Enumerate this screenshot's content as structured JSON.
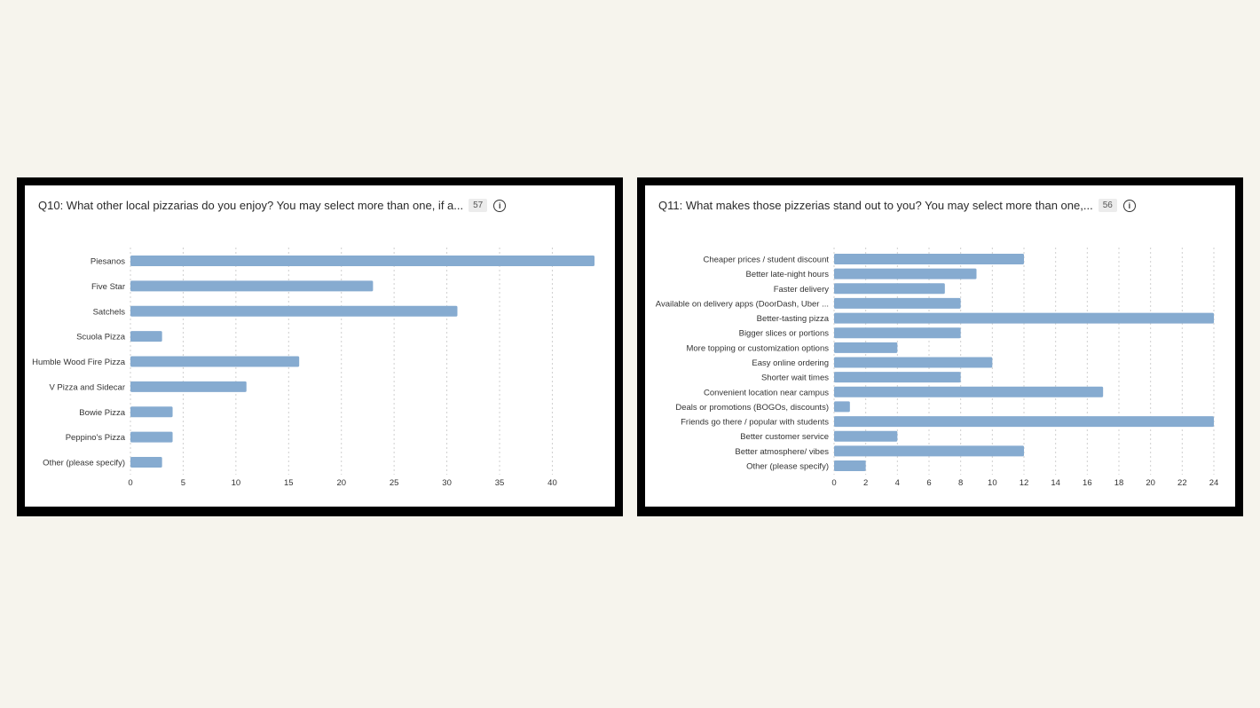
{
  "panels": [
    {
      "title": "Q10: What other local pizzarias do you enjoy? You may select more than one, if a...",
      "count": "57",
      "info_icon": "info-icon",
      "chart_data": {
        "type": "bar",
        "orientation": "horizontal",
        "categories": [
          "Piesanos",
          "Five Star",
          "Satchels",
          "Scuola Pizza",
          "Humble Wood Fire Pizza",
          "V Pizza and Sidecar",
          "Bowie Pizza",
          "Peppino's Pizza",
          "Other (please specify)"
        ],
        "values": [
          44,
          23,
          31,
          3,
          16,
          11,
          4,
          4,
          3
        ],
        "xticks": [
          "0",
          "5",
          "10",
          "15",
          "20",
          "25",
          "30",
          "35",
          "40"
        ],
        "xlim": [
          0,
          44
        ],
        "grid": true,
        "bar_color": "#86abd0"
      }
    },
    {
      "title": "Q11: What makes those pizzerias stand out to you? You may select more than one,...",
      "count": "56",
      "info_icon": "info-icon",
      "chart_data": {
        "type": "bar",
        "orientation": "horizontal",
        "categories": [
          "Cheaper prices / student discount",
          "Better late-night hours",
          "Faster delivery",
          "Available on delivery apps (DoorDash, Uber ...",
          "Better-tasting pizza",
          "Bigger slices or portions",
          "More topping or customization options",
          "Easy online ordering",
          "Shorter wait times",
          "Convenient location near campus",
          "Deals or promotions (BOGOs, discounts)",
          "Friends go there / popular with students",
          "Better customer service",
          "Better atmosphere/ vibes",
          "Other (please specify)"
        ],
        "values": [
          12,
          9,
          7,
          8,
          24,
          8,
          4,
          10,
          8,
          17,
          1,
          24,
          4,
          12,
          2
        ],
        "xticks": [
          "0",
          "2",
          "4",
          "6",
          "8",
          "10",
          "12",
          "14",
          "16",
          "18",
          "20",
          "22",
          "24"
        ],
        "xlim": [
          0,
          24
        ],
        "grid": true,
        "bar_color": "#86abd0"
      }
    }
  ]
}
